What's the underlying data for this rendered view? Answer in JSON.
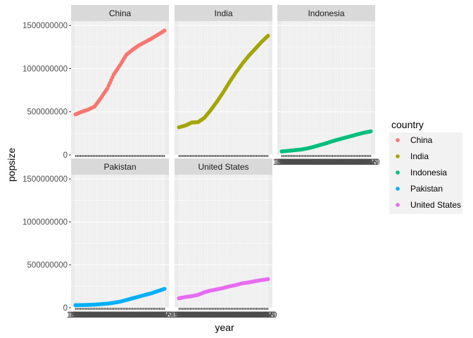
{
  "chart_data": {
    "type": "scatter",
    "layout": "faceted by country, 3 columns, shared axes",
    "xlabel": "year",
    "ylabel": "popsize",
    "ylim": [
      0,
      1550000000
    ],
    "y_ticks": [
      0,
      500000000,
      1000000000,
      1500000000
    ],
    "y_tick_labels": [
      "0",
      "500000000",
      "1000000000",
      "1500000000"
    ],
    "x_range": [
      1950,
      2020
    ],
    "grid": true,
    "legend": {
      "title": "country",
      "position": "right"
    },
    "series": [
      {
        "name": "China",
        "color": "#F8766D",
        "x": [
          1950,
          1955,
          1960,
          1965,
          1970,
          1975,
          1980,
          1985,
          1990,
          1995,
          2000,
          2005,
          2010,
          2015,
          2020
        ],
        "y": [
          470000000,
          500000000,
          525000000,
          560000000,
          660000000,
          770000000,
          930000000,
          1040000000,
          1160000000,
          1220000000,
          1270000000,
          1310000000,
          1350000000,
          1395000000,
          1440000000
        ]
      },
      {
        "name": "India",
        "color": "#A3A500",
        "x": [
          1950,
          1955,
          1960,
          1965,
          1970,
          1975,
          1980,
          1985,
          1990,
          1995,
          2000,
          2005,
          2010,
          2015,
          2020
        ],
        "y": [
          320000000,
          340000000,
          375000000,
          380000000,
          430000000,
          520000000,
          620000000,
          730000000,
          850000000,
          960000000,
          1060000000,
          1150000000,
          1230000000,
          1310000000,
          1380000000
        ]
      },
      {
        "name": "Indonesia",
        "color": "#00BF7D",
        "x": [
          1950,
          1955,
          1960,
          1965,
          1970,
          1975,
          1980,
          1985,
          1990,
          1995,
          2000,
          2005,
          2010,
          2015,
          2020
        ],
        "y": [
          40000000,
          47000000,
          55000000,
          62000000,
          75000000,
          93000000,
          115000000,
          135000000,
          160000000,
          180000000,
          200000000,
          220000000,
          240000000,
          258000000,
          273000000
        ]
      },
      {
        "name": "Pakistan",
        "color": "#00B0F6",
        "x": [
          1950,
          1955,
          1960,
          1965,
          1970,
          1975,
          1980,
          1985,
          1990,
          1995,
          2000,
          2005,
          2010,
          2015,
          2020
        ],
        "y": [
          30000000,
          31000000,
          33000000,
          36000000,
          42000000,
          48000000,
          58000000,
          70000000,
          90000000,
          110000000,
          130000000,
          150000000,
          170000000,
          195000000,
          220000000
        ]
      },
      {
        "name": "United States",
        "color": "#E76BF3",
        "x": [
          1950,
          1955,
          1960,
          1965,
          1970,
          1975,
          1980,
          1985,
          1990,
          1995,
          2000,
          2005,
          2010,
          2015,
          2020
        ],
        "y": [
          110000000,
          125000000,
          135000000,
          150000000,
          180000000,
          200000000,
          215000000,
          230000000,
          250000000,
          265000000,
          285000000,
          295000000,
          310000000,
          322000000,
          333000000
        ]
      }
    ]
  }
}
